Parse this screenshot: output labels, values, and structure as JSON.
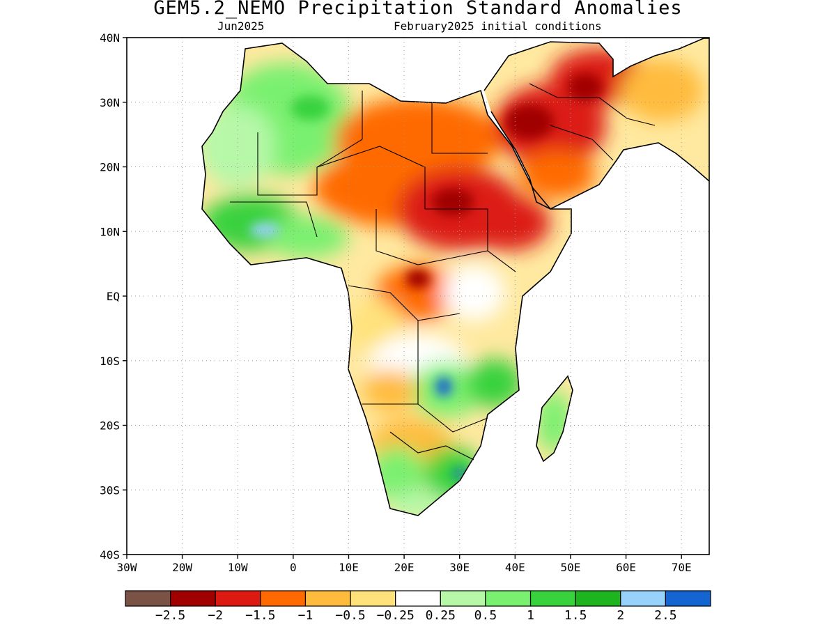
{
  "title": "GEM5.2_NEMO Precipitation Standard Anomalies",
  "subtitle_left": "Jun2025",
  "subtitle_right": "February2025 initial conditions",
  "map": {
    "lon_range": [
      -30,
      75
    ],
    "lat_range": [
      -40,
      40
    ],
    "lon_ticks": [
      {
        "value": -30,
        "label": "30W"
      },
      {
        "value": -20,
        "label": "20W"
      },
      {
        "value": -10,
        "label": "10W"
      },
      {
        "value": 0,
        "label": "0"
      },
      {
        "value": 10,
        "label": "10E"
      },
      {
        "value": 20,
        "label": "20E"
      },
      {
        "value": 30,
        "label": "30E"
      },
      {
        "value": 40,
        "label": "40E"
      },
      {
        "value": 50,
        "label": "50E"
      },
      {
        "value": 60,
        "label": "60E"
      },
      {
        "value": 70,
        "label": "70E"
      }
    ],
    "lat_ticks": [
      {
        "value": 40,
        "label": "40N"
      },
      {
        "value": 30,
        "label": "30N"
      },
      {
        "value": 20,
        "label": "20N"
      },
      {
        "value": 10,
        "label": "10N"
      },
      {
        "value": 0,
        "label": "EQ"
      },
      {
        "value": -10,
        "label": "10S"
      },
      {
        "value": -20,
        "label": "20S"
      },
      {
        "value": -30,
        "label": "30S"
      },
      {
        "value": -40,
        "label": "40S"
      }
    ],
    "gridlines": "dotted",
    "region": "Africa and Arabian Peninsula"
  },
  "colorbar": {
    "colors": [
      "#7a5346",
      "#a00000",
      "#dc1a12",
      "#ff6a00",
      "#ffbb3c",
      "#ffe27a",
      "#ffffff",
      "#b6f8a8",
      "#7af070",
      "#37d23c",
      "#1eb41e",
      "#96d2fa",
      "#1464d2"
    ],
    "labels": [
      "−2.5",
      "−2",
      "−1.5",
      "−1",
      "−0.5",
      "−0.25",
      "0.25",
      "0.5",
      "1",
      "1.5",
      "2",
      "2.5"
    ]
  }
}
